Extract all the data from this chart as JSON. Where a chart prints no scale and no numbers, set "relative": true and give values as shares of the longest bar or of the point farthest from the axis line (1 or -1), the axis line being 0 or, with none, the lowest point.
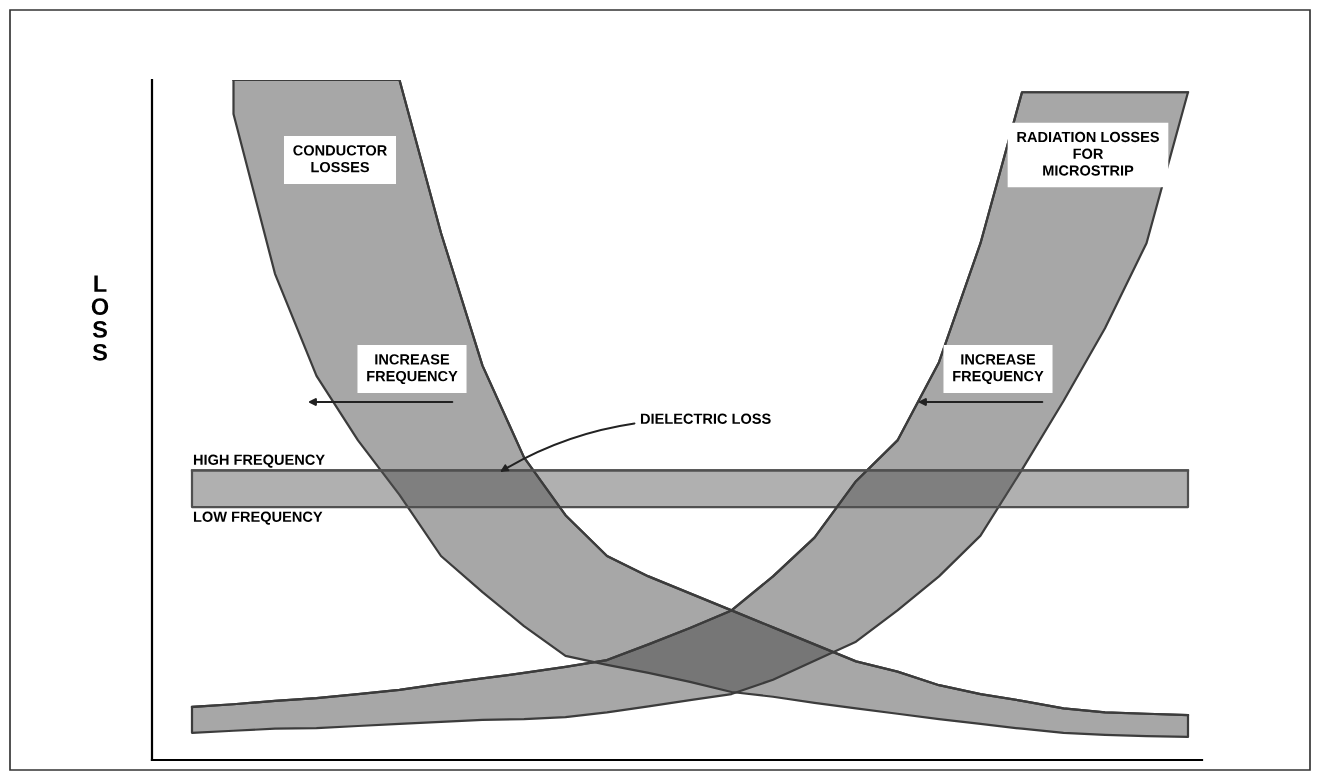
{
  "chart_data": {
    "type": "line",
    "relative": true,
    "ylabel": "LOSS",
    "categories": [
      null,
      null,
      null,
      null,
      null,
      null,
      null,
      null,
      null,
      null,
      null,
      null,
      null,
      null,
      null,
      null,
      null,
      null,
      null,
      null,
      null,
      null,
      null,
      null,
      null
    ],
    "series": [
      {
        "name": "CONDUCTOR\nLOSSES",
        "color": "#3c3c3c",
        "values": [
          null,
          1.0,
          1.0,
          1.0,
          1.0,
          1.0,
          0.775,
          0.58,
          0.445,
          0.36,
          0.3,
          0.27,
          0.245,
          0.22,
          0.195,
          0.17,
          0.145,
          0.13,
          0.11,
          0.097,
          0.087,
          0.076,
          0.07,
          0.068,
          0.066
        ],
        "upper": [
          null,
          1.0,
          1.0,
          1.0,
          1.0,
          1.0,
          0.775,
          0.58,
          0.445,
          0.36,
          0.3,
          0.27,
          0.245,
          0.22,
          0.195,
          0.17,
          0.145,
          0.13,
          0.11,
          0.097,
          0.087,
          0.076,
          0.07,
          0.068,
          0.066
        ],
        "lower": [
          null,
          0.95,
          0.715,
          0.565,
          0.47,
          0.39,
          0.3,
          0.247,
          0.197,
          0.153,
          0.14,
          0.128,
          0.115,
          0.1,
          0.093,
          0.084,
          0.076,
          0.068,
          0.06,
          0.053,
          0.046,
          0.04,
          0.037,
          0.035,
          0.034
        ]
      },
      {
        "name": "RADIATION LOSSES\nFOR\nMICROSTRIP",
        "color": "#3c3c3c",
        "values": [
          0.078,
          0.082,
          0.087,
          0.091,
          0.097,
          0.103,
          0.112,
          0.12,
          0.128,
          0.137,
          0.147,
          0.17,
          0.194,
          0.22,
          0.27,
          0.327,
          0.41,
          0.47,
          0.585,
          0.76,
          0.982,
          0.982,
          0.982,
          0.982,
          0.982
        ],
        "upper": [
          0.078,
          0.082,
          0.087,
          0.091,
          0.097,
          0.103,
          0.112,
          0.12,
          0.128,
          0.137,
          0.147,
          0.17,
          0.194,
          0.22,
          0.27,
          0.327,
          0.41,
          0.47,
          0.585,
          0.76,
          0.982,
          0.982,
          0.982,
          0.982,
          0.982
        ],
        "lower": [
          0.04,
          0.043,
          0.046,
          0.047,
          0.05,
          0.053,
          0.056,
          0.059,
          0.06,
          0.063,
          0.07,
          0.079,
          0.088,
          0.097,
          0.118,
          0.146,
          0.174,
          0.22,
          0.27,
          0.33,
          0.427,
          0.528,
          0.635,
          0.76,
          0.982
        ]
      },
      {
        "name": "DIELECTRIC LOSS",
        "color": "#505050",
        "values": [
          0.426,
          0.426,
          0.426,
          0.426,
          0.426,
          0.426,
          0.426,
          0.426,
          0.426,
          0.426,
          0.426,
          0.426,
          0.426,
          0.426,
          0.426,
          0.426,
          0.426,
          0.426,
          0.426,
          0.426,
          0.426,
          0.426,
          0.426,
          0.426,
          0.426
        ],
        "upper": [
          0.426,
          0.426,
          0.426,
          0.426,
          0.426,
          0.426,
          0.426,
          0.426,
          0.426,
          0.426,
          0.426,
          0.426,
          0.426,
          0.426,
          0.426,
          0.426,
          0.426,
          0.426,
          0.426,
          0.426,
          0.426,
          0.426,
          0.426,
          0.426,
          0.426
        ],
        "lower": [
          0.372,
          0.372,
          0.372,
          0.372,
          0.372,
          0.372,
          0.372,
          0.372,
          0.372,
          0.372,
          0.372,
          0.372,
          0.372,
          0.372,
          0.372,
          0.372,
          0.372,
          0.372,
          0.372,
          0.372,
          0.372,
          0.372,
          0.372,
          0.372,
          0.372
        ]
      }
    ],
    "annotations": [
      "INCREASE\nFREQUENCY",
      "INCREASE\nFREQUENCY",
      "HIGH FREQUENCY",
      "LOW FREQUENCY"
    ],
    "grid": false,
    "legend": false,
    "marker": "none",
    "line_style": "solid"
  }
}
